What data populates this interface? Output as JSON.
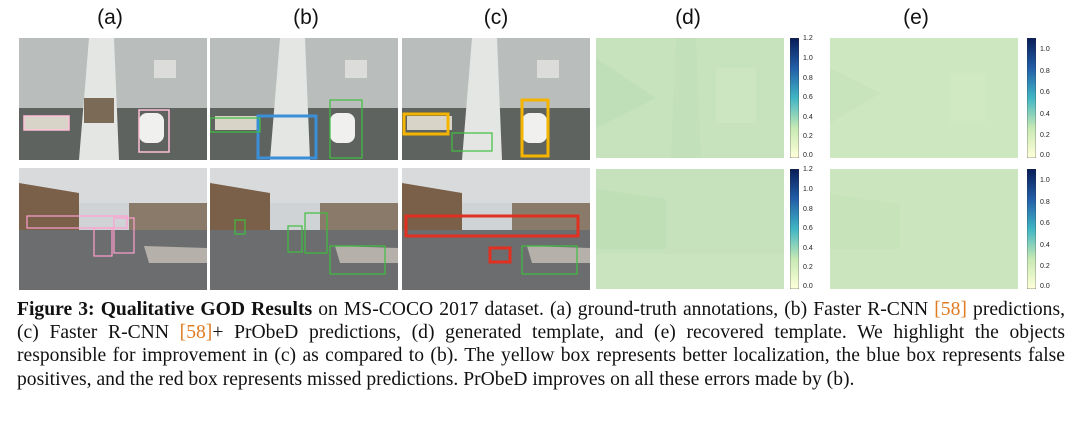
{
  "column_labels": [
    "(a)",
    "(b)",
    "(c)",
    "(d)",
    "(e)"
  ],
  "colorbar_d": {
    "ticks": [
      "1.2",
      "1.0",
      "0.8",
      "0.6",
      "0.4",
      "0.2",
      "0.0"
    ]
  },
  "colorbar_e": {
    "ticks": [
      "1.0",
      "0.8",
      "0.6",
      "0.4",
      "0.2",
      "0.0"
    ]
  },
  "colors": {
    "citation": "#e07b20",
    "yellow_box": "#f4b400",
    "blue_box": "#3a8fd8",
    "red_box": "#e03020",
    "green_box": "#3fbf3f"
  },
  "caption": {
    "figure_label": "Figure 3:",
    "title": "Qualitative GOD Results",
    "part1": " on MS-COCO 2017 dataset. (a) ground-truth annotations, (b) Faster R-CNN ",
    "cite1": "[58]",
    "part2": " predictions, (c) Faster R-CNN ",
    "cite2": "[58]",
    "part3": "+ PrObeD predictions, (d) generated template, and (e) recovered template. We highlight the objects responsible for improvement in (c) as compared to (b). The yellow box represents better localization, the blue box represents false positives, and the red box represents missed predictions. PrObeD improves on all these errors made by (b)."
  }
}
